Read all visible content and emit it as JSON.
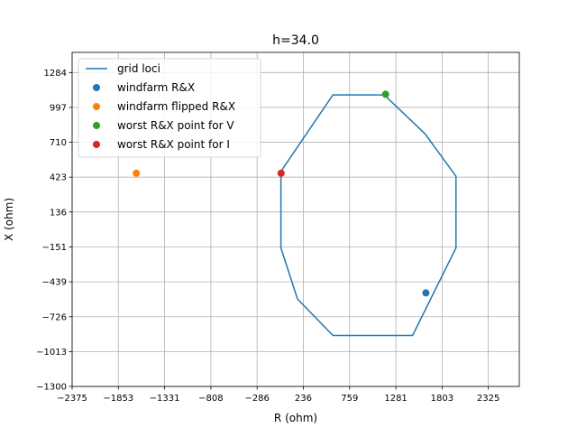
{
  "chart_data": {
    "type": "scatter",
    "title": "h=34.0",
    "xlabel": "R (ohm)",
    "ylabel": "X (ohm)",
    "xlim": [
      -2375,
      2675
    ],
    "ylim": [
      -1300,
      1450
    ],
    "xticks": [
      -2375,
      -1853,
      -1331,
      -808,
      -286,
      236,
      759,
      1281,
      1803,
      2325
    ],
    "yticks": [
      -1300,
      -1013,
      -726,
      -439,
      -151,
      136,
      423,
      710,
      997,
      1284
    ],
    "xtick_labels": [
      "−2375",
      "−1853",
      "−1331",
      "−808",
      "−286",
      "236",
      "759",
      "1281",
      "1803",
      "2325"
    ],
    "ytick_labels": [
      "−1300",
      "−1013",
      "−726",
      "−439",
      "−151",
      "136",
      "423",
      "710",
      "997",
      "1284"
    ],
    "grid": true,
    "legend_position": "top-left",
    "series": [
      {
        "name": "grid loci",
        "kind": "line",
        "color": "#1f77b4",
        "x": [
          -17,
          -17,
          170,
          570,
          1470,
          1960,
          1960,
          1610,
          1150,
          570,
          -17
        ],
        "y": [
          470,
          -160,
          -580,
          -880,
          -880,
          -160,
          430,
          780,
          1100,
          1100,
          470
        ]
      },
      {
        "name": "windfarm R&X",
        "kind": "point",
        "color": "#1f77b4",
        "x": [
          1620
        ],
        "y": [
          -530
        ]
      },
      {
        "name": "windfarm flipped R&X",
        "kind": "point",
        "color": "#ff7f0e",
        "x": [
          -1650
        ],
        "y": [
          455
        ]
      },
      {
        "name": "worst R&X point for V",
        "kind": "point",
        "color": "#2ca02c",
        "x": [
          1165
        ],
        "y": [
          1105
        ]
      },
      {
        "name": "worst R&X point for I",
        "kind": "point",
        "color": "#d62728",
        "x": [
          -15
        ],
        "y": [
          455
        ]
      }
    ]
  }
}
